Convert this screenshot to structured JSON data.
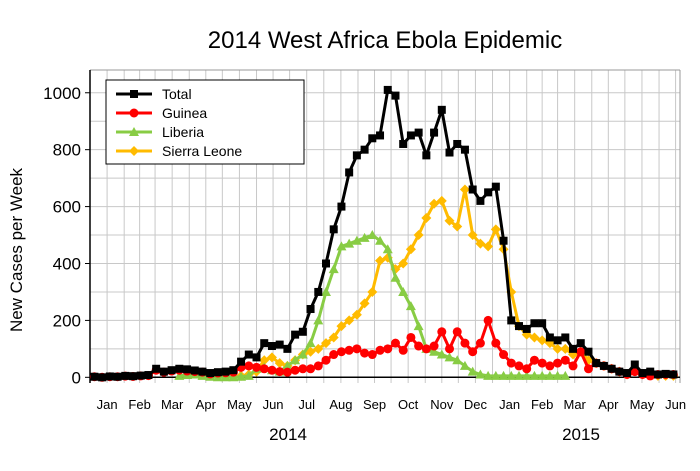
{
  "chart_data": {
    "type": "line",
    "title": "2014 West Africa Ebola Epidemic",
    "xlabel": "",
    "ylabel": "New Cases per Week",
    "ylim": [
      -20,
      1080
    ],
    "yticks": [
      0,
      200,
      400,
      600,
      800,
      1000
    ],
    "grid": true,
    "legend_position": "top-left",
    "x_month_labels": [
      "Jan",
      "Feb",
      "Mar",
      "Apr",
      "May",
      "Jun",
      "Jul",
      "Aug",
      "Sep",
      "Oct",
      "Nov",
      "Dec",
      "Jan",
      "Feb",
      "Mar",
      "Apr",
      "May",
      "Jun"
    ],
    "x_year_labels": [
      "2014",
      "2015"
    ],
    "x": [
      "2014-01-05",
      "2014-01-12",
      "2014-01-19",
      "2014-01-26",
      "2014-02-02",
      "2014-02-09",
      "2014-02-16",
      "2014-02-23",
      "2014-03-02",
      "2014-03-09",
      "2014-03-16",
      "2014-03-23",
      "2014-03-30",
      "2014-04-06",
      "2014-04-13",
      "2014-04-20",
      "2014-04-27",
      "2014-05-04",
      "2014-05-11",
      "2014-05-18",
      "2014-05-25",
      "2014-06-01",
      "2014-06-08",
      "2014-06-15",
      "2014-06-22",
      "2014-06-29",
      "2014-07-06",
      "2014-07-13",
      "2014-07-20",
      "2014-07-27",
      "2014-08-03",
      "2014-08-10",
      "2014-08-17",
      "2014-08-24",
      "2014-08-31",
      "2014-09-07",
      "2014-09-14",
      "2014-09-21",
      "2014-09-28",
      "2014-10-05",
      "2014-10-12",
      "2014-10-19",
      "2014-10-26",
      "2014-11-02",
      "2014-11-09",
      "2014-11-16",
      "2014-11-23",
      "2014-11-30",
      "2014-12-07",
      "2014-12-14",
      "2014-12-21",
      "2014-12-28",
      "2015-01-04",
      "2015-01-11",
      "2015-01-18",
      "2015-01-25",
      "2015-02-01",
      "2015-02-08",
      "2015-02-15",
      "2015-02-22",
      "2015-03-01",
      "2015-03-08",
      "2015-03-15",
      "2015-03-22",
      "2015-03-29",
      "2015-04-05",
      "2015-04-12",
      "2015-04-19",
      "2015-04-26",
      "2015-05-03",
      "2015-05-10",
      "2015-05-17",
      "2015-05-24",
      "2015-05-31",
      "2015-06-07",
      "2015-06-14"
    ],
    "series": [
      {
        "name": "Total",
        "color": "#000000",
        "marker": "square",
        "values": [
          2,
          0,
          3,
          2,
          5,
          4,
          6,
          8,
          30,
          20,
          25,
          30,
          28,
          24,
          20,
          15,
          18,
          20,
          25,
          55,
          80,
          70,
          120,
          110,
          115,
          100,
          150,
          160,
          240,
          300,
          400,
          520,
          600,
          720,
          780,
          800,
          840,
          850,
          1010,
          990,
          820,
          850,
          860,
          780,
          860,
          940,
          790,
          820,
          800,
          660,
          620,
          650,
          670,
          480,
          200,
          180,
          170,
          190,
          190,
          140,
          130,
          140,
          100,
          120,
          90,
          50,
          40,
          30,
          20,
          15,
          45,
          15,
          20,
          10,
          12,
          10
        ]
      },
      {
        "name": "Guinea",
        "color": "#ff0000",
        "marker": "circle",
        "values": [
          2,
          0,
          2,
          2,
          4,
          3,
          5,
          6,
          25,
          18,
          22,
          25,
          22,
          20,
          18,
          12,
          15,
          16,
          18,
          35,
          40,
          35,
          30,
          25,
          20,
          18,
          25,
          30,
          30,
          40,
          60,
          80,
          90,
          95,
          100,
          85,
          80,
          95,
          100,
          120,
          95,
          140,
          110,
          100,
          110,
          160,
          100,
          160,
          120,
          90,
          120,
          200,
          120,
          80,
          50,
          40,
          30,
          60,
          50,
          40,
          50,
          60,
          40,
          90,
          30,
          50,
          40,
          30,
          20,
          10,
          20,
          10,
          5,
          10,
          10,
          10
        ]
      },
      {
        "name": "Liberia",
        "color": "#88cc44",
        "marker": "triangle",
        "values": [
          null,
          null,
          null,
          null,
          null,
          null,
          null,
          null,
          null,
          null,
          null,
          5,
          8,
          10,
          5,
          2,
          0,
          0,
          0,
          2,
          5,
          30,
          35,
          25,
          20,
          40,
          60,
          80,
          120,
          200,
          300,
          380,
          460,
          470,
          480,
          490,
          500,
          480,
          450,
          350,
          300,
          250,
          180,
          100,
          90,
          80,
          70,
          60,
          40,
          20,
          10,
          5,
          5,
          5,
          5,
          5,
          5,
          5,
          5,
          5,
          5,
          5,
          null,
          null,
          null,
          null,
          null,
          null,
          null,
          null,
          null,
          null,
          null,
          null,
          null,
          null
        ]
      },
      {
        "name": "Sierra Leone",
        "color": "#ffbb00",
        "marker": "diamond",
        "values": [
          null,
          null,
          null,
          null,
          null,
          null,
          null,
          null,
          null,
          null,
          null,
          null,
          null,
          null,
          null,
          null,
          null,
          null,
          null,
          5,
          10,
          20,
          60,
          70,
          50,
          40,
          60,
          80,
          90,
          100,
          120,
          140,
          180,
          200,
          220,
          260,
          300,
          410,
          420,
          380,
          400,
          450,
          500,
          560,
          610,
          620,
          550,
          530,
          660,
          500,
          470,
          460,
          520,
          450,
          300,
          180,
          150,
          140,
          130,
          120,
          100,
          100,
          80,
          90,
          60,
          50,
          40,
          30,
          20,
          10,
          30,
          10,
          15,
          5,
          5,
          5
        ]
      }
    ]
  }
}
